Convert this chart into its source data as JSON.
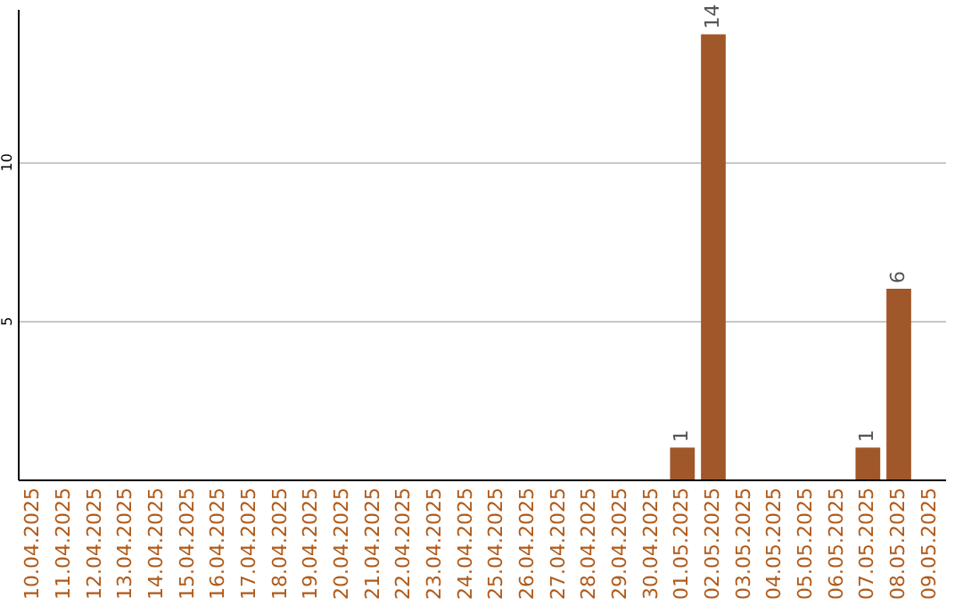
{
  "chart_data": {
    "type": "bar",
    "categories": [
      "10.04.2025",
      "11.04.2025",
      "12.04.2025",
      "13.04.2025",
      "14.04.2025",
      "15.04.2025",
      "16.04.2025",
      "17.04.2025",
      "18.04.2025",
      "19.04.2025",
      "20.04.2025",
      "21.04.2025",
      "22.04.2025",
      "23.04.2025",
      "24.04.2025",
      "25.04.2025",
      "26.04.2025",
      "27.04.2025",
      "28.04.2025",
      "29.04.2025",
      "30.04.2025",
      "01.05.2025",
      "02.05.2025",
      "03.05.2025",
      "04.05.2025",
      "05.05.2025",
      "06.05.2025",
      "07.05.2025",
      "08.05.2025",
      "09.05.2025"
    ],
    "values": [
      0,
      0,
      0,
      0,
      0,
      0,
      0,
      0,
      0,
      0,
      0,
      0,
      0,
      0,
      0,
      0,
      0,
      0,
      0,
      0,
      0,
      1,
      14,
      0,
      0,
      0,
      0,
      1,
      6,
      0
    ],
    "value_labels": [
      null,
      null,
      null,
      null,
      null,
      null,
      null,
      null,
      null,
      null,
      null,
      null,
      null,
      null,
      null,
      null,
      null,
      null,
      null,
      null,
      null,
      "1",
      "14",
      null,
      null,
      null,
      null,
      "1",
      "6",
      null
    ],
    "color": "#a0572a",
    "ylim": [
      0,
      14.8
    ],
    "yticks": [
      5,
      10
    ],
    "grid": "y"
  }
}
